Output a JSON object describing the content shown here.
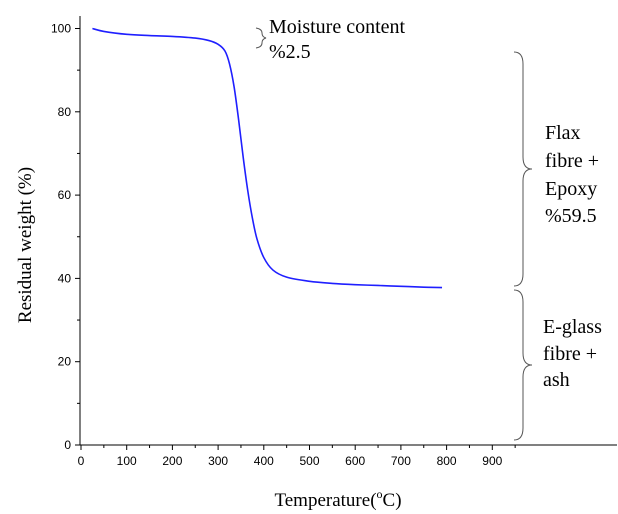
{
  "chart_data": {
    "type": "line",
    "title": "",
    "xlabel": "Temperature",
    "xlabel_unit_prefix": "(",
    "xlabel_unit_sup": "o",
    "xlabel_unit_main": "C)",
    "ylabel": "Residual weight (%)",
    "xlim": [
      0,
      980
    ],
    "ylim": [
      0,
      104
    ],
    "xticks": [
      0,
      100,
      200,
      300,
      400,
      500,
      600,
      700,
      800,
      900
    ],
    "yticks": [
      0,
      20,
      40,
      60,
      80,
      100
    ],
    "grid": false,
    "legend": "none",
    "series": [
      {
        "color": "#1f1fff",
        "x": [
          25,
          50,
          100,
          150,
          200,
          250,
          280,
          300,
          315,
          325,
          335,
          345,
          355,
          365,
          375,
          385,
          400,
          420,
          450,
          500,
          550,
          600,
          650,
          700,
          750,
          790
        ],
        "y": [
          100,
          99.3,
          98.6,
          98.3,
          98.1,
          97.7,
          97.1,
          96.2,
          94.6,
          91.5,
          86,
          78,
          69,
          61,
          54.5,
          49.5,
          45,
          42,
          40.3,
          39.3,
          38.8,
          38.5,
          38.3,
          38.1,
          37.9,
          37.8
        ]
      }
    ],
    "annotations": [
      {
        "id": "moisture",
        "lines": [
          "Moisture content",
          "%2.5"
        ]
      },
      {
        "id": "flax",
        "lines": [
          "Flax",
          "fibre +",
          "Epoxy",
          "%59.5"
        ]
      },
      {
        "id": "eglass",
        "lines": [
          "E-glass",
          "fibre +",
          "ash"
        ]
      }
    ]
  }
}
